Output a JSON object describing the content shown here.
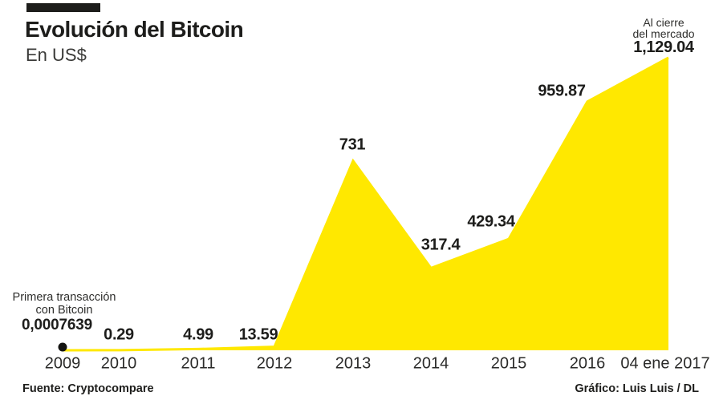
{
  "header": {
    "title": "Evolución del Bitcoin",
    "subtitle": "En US$"
  },
  "close_annotation": {
    "line1": "Al cierre",
    "line2": "del mercado",
    "value": "1,129.04"
  },
  "first_annotation": {
    "line1": "Primera transacción",
    "line2": "con Bitcoin",
    "value": "0,0007639"
  },
  "footer": {
    "source": "Fuente: Cryptocompare",
    "credit": "Gráfico: Luis Luis / DL"
  },
  "colors": {
    "area": "#FFE800",
    "text": "#1D1D1B",
    "dot": "#141412"
  },
  "chart_data": {
    "type": "area",
    "title": "Evolución del Bitcoin",
    "ylabel": "US$",
    "xlabel": "",
    "categories": [
      "2009",
      "2010",
      "2011",
      "2012",
      "2013",
      "2014",
      "2015",
      "2016",
      "04 ene 2017"
    ],
    "values": [
      0.0007639,
      0.29,
      4.99,
      13.59,
      731,
      317.4,
      429.34,
      959.87,
      1129.04
    ],
    "value_labels": [
      "0,0007639",
      "0.29",
      "4.99",
      "13.59",
      "731",
      "317.4",
      "429.34",
      "959.87",
      "1,129.04"
    ],
    "ylim": [
      0,
      1129.04
    ],
    "grid": false,
    "legend": false,
    "annotations": [
      {
        "text": "Primera transacción con Bitcoin",
        "target": "2009"
      },
      {
        "text": "Al cierre del mercado",
        "target": "04 ene 2017"
      }
    ]
  }
}
